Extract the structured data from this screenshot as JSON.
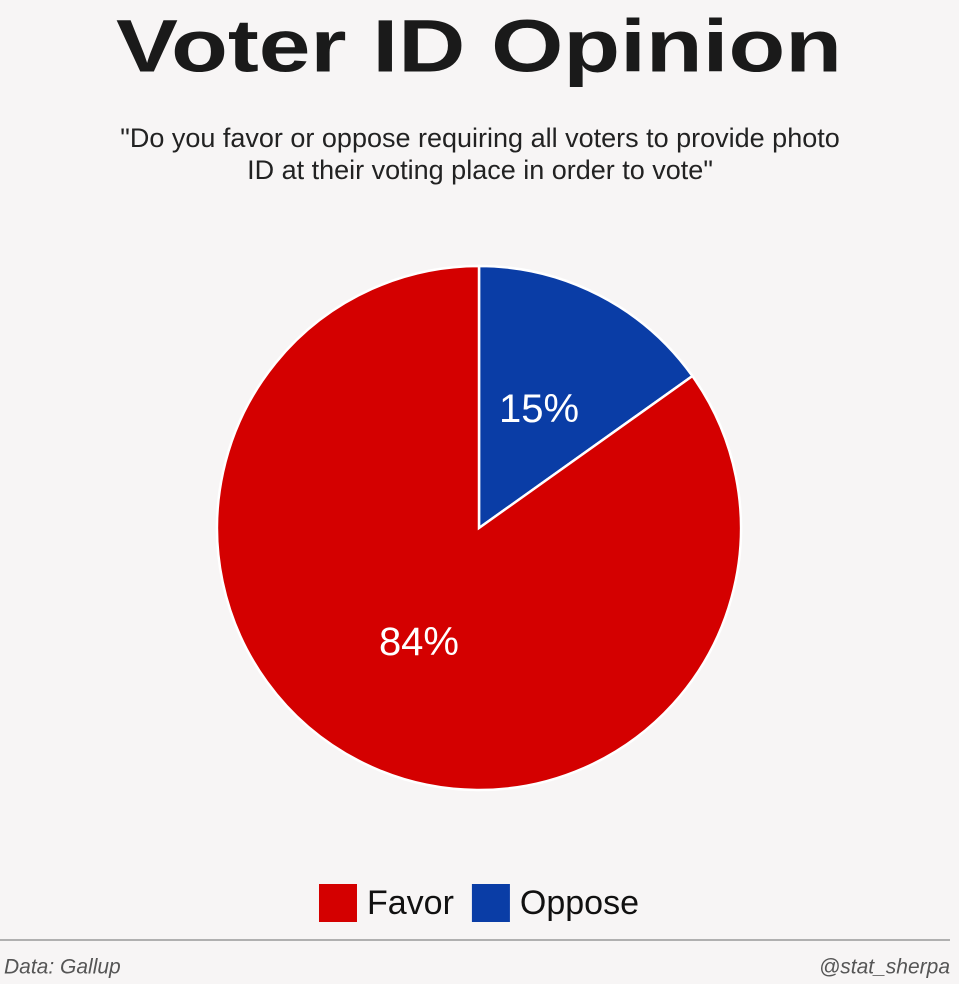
{
  "chart_data": {
    "type": "pie",
    "title": "Voter ID Opinion",
    "subtitle": "\"Do you favor or oppose requiring all voters to provide photo ID at their voting place in order to vote\"",
    "categories": [
      "Favor",
      "Oppose"
    ],
    "values": [
      84,
      15
    ],
    "value_labels": [
      "84%",
      "15%"
    ],
    "colors": [
      "#d40000",
      "#0a3da6"
    ],
    "legend": "bottom",
    "source": "Data: Gallup",
    "credit": "@stat_sherpa"
  }
}
